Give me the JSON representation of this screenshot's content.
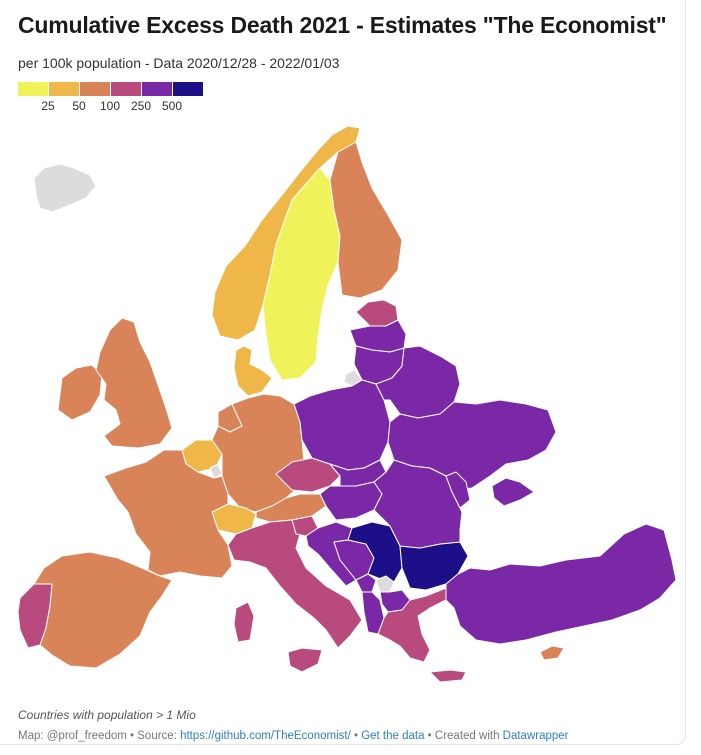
{
  "title": "Cumulative Excess Death 2021 - Estimates \"The Economist\"",
  "subtitle": "per 100k population - Data 2020/12/28 - 2022/01/03",
  "legend": {
    "colors": [
      "#f0f25a",
      "#efb748",
      "#d98458",
      "#b84a7e",
      "#7a28a6",
      "#1d0f87"
    ],
    "ticks": [
      "25",
      "50",
      "100",
      "250",
      "500"
    ]
  },
  "countries": [
    {
      "name": "Iceland",
      "cls": "nodata"
    },
    {
      "name": "Norway",
      "cls": 1
    },
    {
      "name": "Sweden",
      "cls": 0
    },
    {
      "name": "Finland",
      "cls": 2
    },
    {
      "name": "Denmark",
      "cls": 1
    },
    {
      "name": "Ireland",
      "cls": 2
    },
    {
      "name": "United Kingdom",
      "cls": 2
    },
    {
      "name": "Netherlands",
      "cls": 2
    },
    {
      "name": "Belgium",
      "cls": 1
    },
    {
      "name": "Luxembourg",
      "cls": "nodata"
    },
    {
      "name": "Germany",
      "cls": 2
    },
    {
      "name": "Switzerland",
      "cls": 1
    },
    {
      "name": "France",
      "cls": 2
    },
    {
      "name": "Portugal",
      "cls": 3
    },
    {
      "name": "Spain",
      "cls": 2
    },
    {
      "name": "Austria",
      "cls": 2
    },
    {
      "name": "Czech Republic",
      "cls": 3
    },
    {
      "name": "Italy",
      "cls": 3
    },
    {
      "name": "Slovenia",
      "cls": 3
    },
    {
      "name": "Croatia",
      "cls": 4
    },
    {
      "name": "Bosnia and Herzegovina",
      "cls": 4
    },
    {
      "name": "Serbia",
      "cls": 5
    },
    {
      "name": "Montenegro",
      "cls": 4
    },
    {
      "name": "Kosovo",
      "cls": "nodata"
    },
    {
      "name": "Albania",
      "cls": 4
    },
    {
      "name": "North Macedonia",
      "cls": 4
    },
    {
      "name": "Bulgaria",
      "cls": 5
    },
    {
      "name": "Greece",
      "cls": 3
    },
    {
      "name": "Cyprus",
      "cls": 2
    },
    {
      "name": "Turkey",
      "cls": 4
    },
    {
      "name": "Estonia",
      "cls": 3
    },
    {
      "name": "Latvia",
      "cls": 4
    },
    {
      "name": "Lithuania",
      "cls": 4
    },
    {
      "name": "Poland",
      "cls": 4
    },
    {
      "name": "Belarus",
      "cls": 4
    },
    {
      "name": "Ukraine",
      "cls": 4
    },
    {
      "name": "Slovakia",
      "cls": 4
    },
    {
      "name": "Hungary",
      "cls": 4
    },
    {
      "name": "Romania",
      "cls": 4
    },
    {
      "name": "Moldova",
      "cls": 4
    },
    {
      "name": "Russia (Kaliningrad)",
      "cls": "nodata"
    },
    {
      "name": "Crimea",
      "cls": 4
    }
  ],
  "nodata_color": "#dcdcdc",
  "note": "Countries with population > 1 Mio",
  "credits": {
    "map_by": "Map: @prof_freedom",
    "sep1": " • Source: ",
    "source_link": "https://github.com/TheEconomist/",
    "sep2": " • ",
    "get_data": "Get the data",
    "sep3": " • Created with ",
    "tool": "Datawrapper"
  }
}
